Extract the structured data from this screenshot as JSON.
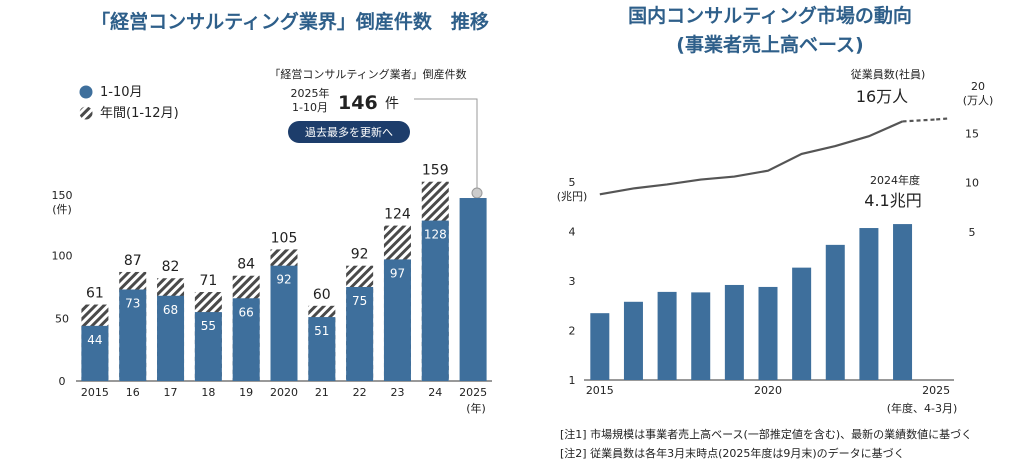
{
  "chart_data": [
    {
      "type": "bar",
      "title": "「経営コンサルティング業界」倒産件数　推移",
      "ylabel": "(件)",
      "y_axis_top_label": "150",
      "ylim": [
        0,
        150
      ],
      "yticks": [
        0,
        50,
        100
      ],
      "categories": [
        "2015",
        "16",
        "17",
        "18",
        "19",
        "2020",
        "21",
        "22",
        "23",
        "24",
        "2025"
      ],
      "x_unit": "(年)",
      "series": [
        {
          "name": "1-10月",
          "values": [
            44,
            73,
            68,
            55,
            66,
            92,
            51,
            75,
            97,
            128,
            146
          ]
        },
        {
          "name": "年間(1-12月)",
          "values": [
            61,
            87,
            82,
            71,
            84,
            105,
            60,
            92,
            124,
            159,
            null
          ]
        }
      ],
      "legend": [
        "1-10月",
        "年間(1-12月)"
      ],
      "annotation": {
        "heading": "「経営コンサルティング業者」倒産件数",
        "period_year": "2025年",
        "period_months": "1-10月",
        "value": "146",
        "unit": "件",
        "badge": "過去最多を更新へ"
      }
    },
    {
      "type": "bar",
      "title_line1": "国内コンサルティング市場の動向",
      "title_line2": "(事業者売上高ベース)",
      "categories": [
        "2015",
        "2016",
        "2017",
        "2018",
        "2019",
        "2020",
        "2021",
        "2022",
        "2023",
        "2024",
        "2025"
      ],
      "x_tick_labels": [
        "2015",
        "",
        "",
        "",
        "",
        "2020",
        "",
        "",
        "",
        "",
        "2025"
      ],
      "x_unit": "(年度、4-3月)",
      "ylim": [
        1,
        5
      ],
      "yticks": [
        1,
        2,
        3,
        4
      ],
      "y_top_label": "5",
      "y_unit": "(兆円)",
      "series": [
        {
          "name": "市場規模 (兆円)",
          "type": "bar",
          "values": [
            2.35,
            2.58,
            2.78,
            2.77,
            2.92,
            2.88,
            3.27,
            3.73,
            4.07,
            4.15,
            null
          ]
        },
        {
          "name": "従業員数 (社員)",
          "type": "line",
          "axis": "right",
          "values": [
            8.8,
            9.4,
            9.8,
            10.3,
            10.6,
            11.2,
            12.9,
            13.7,
            14.7,
            16.2,
            16.4
          ],
          "dashed_last_segment": true
        }
      ],
      "y2lim": [
        0,
        20
      ],
      "y2ticks": [
        5,
        10,
        15
      ],
      "y2_top_label": "20",
      "y2_unit": "(万人)",
      "annotations": {
        "employees_label": "従業員数(社員)",
        "employees_value": "16万人",
        "market_year": "2024年度",
        "market_value": "4.1兆円"
      },
      "notes": [
        "[注1]  市場規模は事業者売上高ベース(一部推定値を含む)、最新の業績数値に基づく",
        "[注2]  従業員数は各年3月末時点(2025年度は9月末)のデータに基づく"
      ]
    }
  ],
  "colors": {
    "bar": "#3e6f9c",
    "title": "#2e5f8a",
    "hatch": "#4a4a4a",
    "line": "#555555",
    "badge": "#1d3d6b"
  }
}
